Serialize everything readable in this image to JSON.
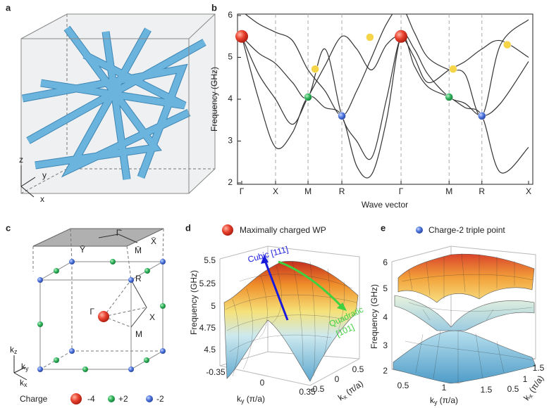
{
  "panel_labels": [
    "a",
    "b",
    "c",
    "d",
    "e"
  ],
  "panel_a": {
    "axes": [
      "z",
      "y",
      "x"
    ]
  },
  "chart_data": {
    "type": "line",
    "ylabel": "Frequency (GHz)",
    "xlabel": "Wave vector",
    "xlim": [
      0,
      8.48
    ],
    "ylim": [
      2,
      6
    ],
    "yticks": [
      2,
      3,
      4,
      5,
      6
    ],
    "xticks": [
      {
        "value": 0,
        "label": "Γ"
      },
      {
        "value": 1,
        "label": "X"
      },
      {
        "value": 1.96,
        "label": "M"
      },
      {
        "value": 2.96,
        "label": "R"
      },
      {
        "value": 4.71,
        "label": "Γ"
      },
      {
        "value": 6.13,
        "label": "M"
      },
      {
        "value": 7.1,
        "label": "R"
      },
      {
        "value": 8.48,
        "label": "X"
      }
    ],
    "x": [
      0,
      0.5,
      1,
      1.5,
      1.96,
      2.46,
      2.96,
      3.4,
      3.84,
      4.28,
      4.71,
      5.1,
      5.5,
      6.13,
      6.6,
      7.1,
      7.65,
      8.48
    ],
    "series": [
      {
        "color": "#333333",
        "values": [
          5.5,
          4.0,
          2.85,
          3.2,
          4.05,
          3.8,
          3.6,
          2.4,
          2.2,
          3.5,
          5.5,
          4.8,
          4.3,
          4.05,
          3.8,
          3.6,
          2.25,
          2.85
        ]
      },
      {
        "color": "#333333",
        "values": [
          5.5,
          5.1,
          4.85,
          4.4,
          4.05,
          5.2,
          3.6,
          3.0,
          2.6,
          4.0,
          5.5,
          5.2,
          4.6,
          4.05,
          3.9,
          3.6,
          3.9,
          4.9
        ]
      },
      {
        "color": "#333333",
        "values": [
          5.5,
          4.6,
          4.0,
          3.4,
          4.05,
          4.8,
          5.5,
          5.2,
          4.7,
          5.3,
          5.5,
          5.0,
          4.4,
          4.7,
          4.9,
          5.2,
          5.4,
          5.0
        ]
      },
      {
        "color": "#333333",
        "values": [
          6.1,
          5.8,
          5.6,
          5.4,
          4.7,
          4.2,
          3.6,
          4.2,
          5.0,
          5.8,
          6.2,
          5.6,
          5.0,
          4.7,
          4.6,
          3.6,
          5.3,
          5.9
        ]
      }
    ],
    "points": [
      {
        "x": 0,
        "y": 5.5,
        "color": "#e8412e"
      },
      {
        "x": 4.71,
        "y": 5.5,
        "color": "#e8412e"
      },
      {
        "x": 1.96,
        "y": 4.05,
        "color": "#2fb35a"
      },
      {
        "x": 6.13,
        "y": 4.05,
        "color": "#2fb35a"
      },
      {
        "x": 2.96,
        "y": 3.6,
        "color": "#4d74de"
      },
      {
        "x": 7.1,
        "y": 3.6,
        "color": "#4d74de"
      },
      {
        "x": 2.17,
        "y": 4.72,
        "color": "#f5d547"
      },
      {
        "x": 3.79,
        "y": 5.48,
        "color": "#f5d547"
      },
      {
        "x": 6.25,
        "y": 4.72,
        "color": "#f5d547"
      },
      {
        "x": 7.85,
        "y": 5.3,
        "color": "#f5d547"
      }
    ]
  },
  "panel_c": {
    "labels": [
      "Γ̄",
      "Ȳ",
      "X̄",
      "M̄",
      "R",
      "Γ",
      "X",
      "M"
    ],
    "axes": [
      [
        "k",
        "z"
      ],
      [
        "k",
        "y"
      ],
      [
        "k",
        "x"
      ]
    ],
    "legend": {
      "title": "Charge",
      "items": [
        "-4",
        "+2",
        "-2"
      ]
    }
  },
  "panel_d": {
    "legend": "Maximally charged WP",
    "annotations": [
      "Cubic [111]",
      "Quadratic",
      "[101]"
    ],
    "zlabel": "Frequency (GHz)",
    "zticks": [
      "5.5",
      "5.25",
      "5",
      "4.75",
      "4.5"
    ],
    "yticks": [
      "-0.35",
      "0",
      "0.35"
    ],
    "ylabel": [
      "k",
      "y",
      " (π/a)"
    ],
    "xticks": [
      "-0.5",
      "0",
      "0.5"
    ],
    "xlabel": [
      "k",
      "x",
      " (π/a)"
    ]
  },
  "panel_e": {
    "legend": "Charge-2 triple point",
    "zlabel": "Frequency (GHz)",
    "zticks": [
      "6",
      "5",
      "4",
      "3",
      "2"
    ],
    "yticks": [
      "0.5",
      "1",
      "1.5"
    ],
    "ylabel": [
      "k",
      "y",
      " (π/a)"
    ],
    "xticks": [
      "0.5",
      "1",
      "1.5"
    ],
    "xlabel": [
      "k",
      "x",
      " (π/a)"
    ]
  }
}
